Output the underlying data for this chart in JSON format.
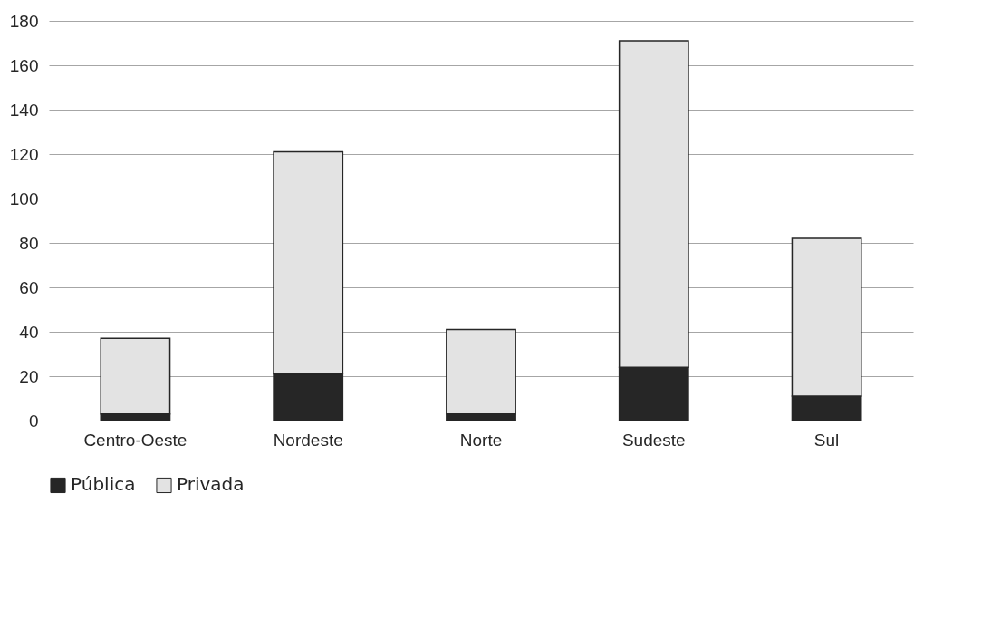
{
  "chart_data": {
    "type": "bar",
    "stacked": true,
    "categories": [
      "Centro-Oeste",
      "Nordeste",
      "Norte",
      "Sudeste",
      "Sul"
    ],
    "series": [
      {
        "name": "Pública",
        "color": "#262626",
        "values": [
          3,
          21,
          3,
          24,
          11
        ]
      },
      {
        "name": "Privada",
        "color": "#e3e3e3",
        "values": [
          34,
          100,
          38,
          147,
          71
        ]
      }
    ],
    "ylim": [
      0,
      180
    ],
    "yticks": [
      0,
      20,
      40,
      60,
      80,
      100,
      120,
      140,
      160,
      180
    ],
    "grid": "y",
    "legend": "bottom"
  }
}
